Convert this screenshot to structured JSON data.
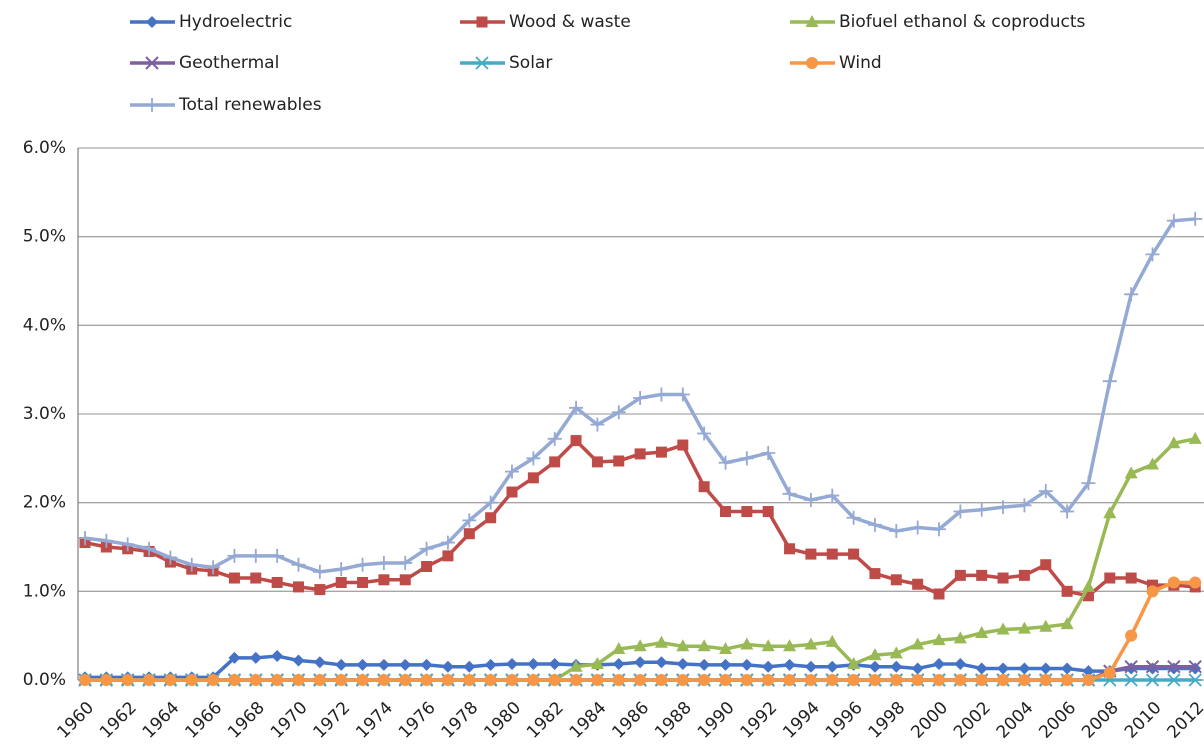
{
  "chart_data": {
    "type": "line",
    "categories": [
      "1960",
      null,
      "1962",
      null,
      "1964",
      null,
      "1966",
      null,
      "1968",
      null,
      "1970",
      null,
      "1972",
      null,
      "1974",
      null,
      "1976",
      null,
      "1978",
      null,
      "1980",
      null,
      "1982",
      null,
      "1984",
      null,
      "1986",
      null,
      "1988",
      null,
      "1990",
      null,
      "1992",
      null,
      "1994",
      null,
      "1996",
      null,
      "1998",
      null,
      "2000",
      null,
      "2002",
      null,
      "2004",
      null,
      "2006",
      null,
      "2008",
      null,
      "2010",
      null,
      "2012"
    ],
    "series": [
      {
        "name": "Hydroelectric",
        "color": "#4472c4",
        "marker": "diamond",
        "values": [
          0.03,
          0.03,
          0.03,
          0.03,
          0.03,
          0.03,
          0.03,
          0.25,
          0.25,
          0.27,
          0.22,
          0.2,
          0.17,
          0.17,
          0.17,
          0.17,
          0.17,
          0.15,
          0.15,
          0.17,
          0.18,
          0.18,
          0.18,
          0.17,
          0.17,
          0.18,
          0.2,
          0.2,
          0.18,
          0.17,
          0.17,
          0.17,
          0.15,
          0.17,
          0.15,
          0.15,
          0.17,
          0.15,
          0.15,
          0.13,
          0.18,
          0.18,
          0.13,
          0.13,
          0.13,
          0.13,
          0.13,
          0.1,
          0.1,
          0.13,
          0.13,
          0.13,
          0.13
        ]
      },
      {
        "name": "Wood & waste",
        "color": "#be4b48",
        "marker": "square",
        "values": [
          1.55,
          1.5,
          1.48,
          1.45,
          1.33,
          1.25,
          1.23,
          1.15,
          1.15,
          1.1,
          1.05,
          1.02,
          1.1,
          1.1,
          1.13,
          1.13,
          1.28,
          1.4,
          1.65,
          1.83,
          2.12,
          2.28,
          2.46,
          2.7,
          2.46,
          2.47,
          2.55,
          2.57,
          2.65,
          2.18,
          1.9,
          1.9,
          1.9,
          1.48,
          1.42,
          1.42,
          1.42,
          1.2,
          1.13,
          1.08,
          0.97,
          1.18,
          1.18,
          1.15,
          1.18,
          1.3,
          1.0,
          0.95,
          1.15,
          1.15,
          1.07,
          1.07,
          1.05
        ]
      },
      {
        "name": "Biofuel ethanol & coproducts",
        "color": "#98b954",
        "marker": "triangle",
        "values": [
          0,
          0,
          0,
          0,
          0,
          0,
          0,
          0,
          0,
          0,
          0,
          0,
          0,
          0,
          0,
          0,
          0,
          0,
          0,
          0,
          0,
          0,
          0,
          0.15,
          0.18,
          0.35,
          0.38,
          0.42,
          0.38,
          0.38,
          0.35,
          0.4,
          0.38,
          0.38,
          0.4,
          0.43,
          0.18,
          0.28,
          0.3,
          0.4,
          0.45,
          0.47,
          0.53,
          0.57,
          0.58,
          0.6,
          0.63,
          1.05,
          1.88,
          2.33,
          2.43,
          2.67,
          2.72
        ]
      },
      {
        "name": "Geothermal",
        "color": "#7d60a0",
        "marker": "x",
        "values": [
          0,
          0,
          0,
          0,
          0,
          0,
          0,
          0,
          0,
          0,
          0,
          0,
          0,
          0,
          0,
          0,
          0,
          0,
          0,
          0,
          0,
          0,
          0,
          0,
          0,
          0,
          0,
          0,
          0,
          0,
          0,
          0,
          0,
          0,
          0,
          0,
          0,
          0,
          0,
          0,
          0,
          0,
          0,
          0,
          0,
          0,
          0,
          0,
          0.1,
          0.15,
          0.15,
          0.15,
          0.15
        ]
      },
      {
        "name": "Solar",
        "color": "#46aac5",
        "marker": "star",
        "values": [
          0,
          0,
          0,
          0,
          0,
          0,
          0,
          0,
          0,
          0,
          0,
          0,
          0,
          0,
          0,
          0,
          0,
          0,
          0,
          0,
          0,
          0,
          0,
          0,
          0,
          0,
          0,
          0,
          0,
          0,
          0,
          0,
          0,
          0,
          0,
          0,
          0,
          0,
          0,
          0,
          0,
          0,
          0,
          0,
          0,
          0,
          0,
          0,
          0,
          0,
          0,
          0,
          0
        ]
      },
      {
        "name": "Wind",
        "color": "#f79646",
        "marker": "circle",
        "values": [
          0,
          0,
          0,
          0,
          0,
          0,
          0,
          0,
          0,
          0,
          0,
          0,
          0,
          0,
          0,
          0,
          0,
          0,
          0,
          0,
          0,
          0,
          0,
          0,
          0,
          0,
          0,
          0,
          0,
          0,
          0,
          0,
          0,
          0,
          0,
          0,
          0,
          0,
          0,
          0,
          0,
          0,
          0,
          0,
          0,
          0,
          0,
          0,
          0.08,
          0.5,
          1.0,
          1.1,
          1.1
        ]
      },
      {
        "name": "Total renewables",
        "color": "#94a9d4",
        "marker": "plus",
        "values": [
          1.6,
          1.57,
          1.53,
          1.48,
          1.38,
          1.3,
          1.27,
          1.4,
          1.4,
          1.4,
          1.3,
          1.22,
          1.25,
          1.3,
          1.32,
          1.32,
          1.48,
          1.55,
          1.8,
          2.0,
          2.35,
          2.5,
          2.72,
          3.07,
          2.88,
          3.02,
          3.18,
          3.22,
          3.22,
          2.78,
          2.45,
          2.5,
          2.56,
          2.1,
          2.03,
          2.08,
          1.83,
          1.75,
          1.68,
          1.72,
          1.7,
          1.9,
          1.92,
          1.95,
          1.97,
          2.13,
          1.9,
          2.22,
          3.37,
          4.35,
          4.8,
          5.18,
          5.2
        ]
      }
    ],
    "ylim": [
      0,
      6
    ],
    "yticks": [
      {
        "value": 0,
        "label": "0.0%"
      },
      {
        "value": 1,
        "label": "1.0%"
      },
      {
        "value": 2,
        "label": "2.0%"
      },
      {
        "value": 3,
        "label": "3.0%"
      },
      {
        "value": 4,
        "label": "4.0%"
      },
      {
        "value": 5,
        "label": "5.0%"
      },
      {
        "value": 6,
        "label": "6.0%"
      }
    ],
    "grid": true,
    "legend": "top"
  }
}
